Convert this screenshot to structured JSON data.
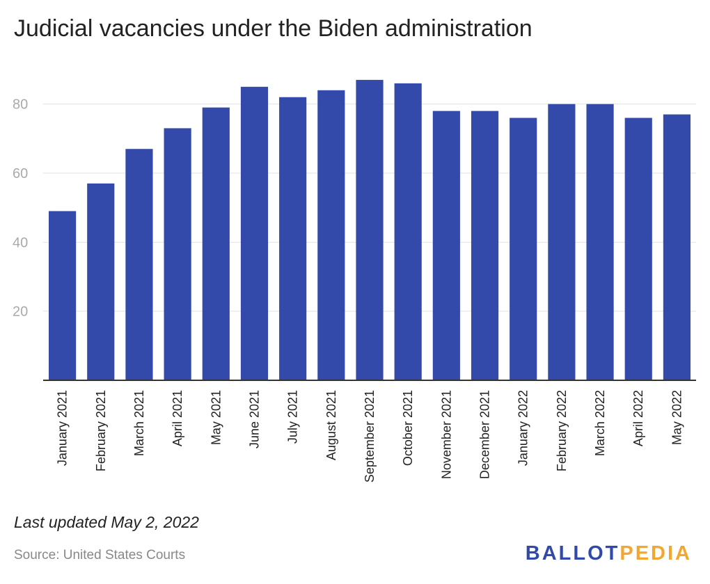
{
  "title": "Judicial vacancies under the Biden administration",
  "footer": {
    "updated": "Last updated May 2, 2022",
    "source": "Source: United States Courts"
  },
  "logo": {
    "part1": "BALLOT",
    "part2": "PEDIA",
    "color1": "#2f4aa8",
    "color2": "#f0a830"
  },
  "chart_data": {
    "type": "bar",
    "title": "Judicial vacancies under the Biden administration",
    "xlabel": "",
    "ylabel": "",
    "categories": [
      "January 2021",
      "February 2021",
      "March 2021",
      "April 2021",
      "May 2021",
      "June 2021",
      "July 2021",
      "August 2021",
      "September 2021",
      "October 2021",
      "November 2021",
      "December 2021",
      "January 2022",
      "February 2022",
      "March 2022",
      "April 2022",
      "May 2022"
    ],
    "values": [
      49,
      57,
      67,
      73,
      79,
      85,
      82,
      84,
      87,
      86,
      78,
      78,
      76,
      80,
      80,
      76,
      77
    ],
    "ylim": [
      0,
      90
    ],
    "yticks": [
      20,
      40,
      60,
      80
    ],
    "grid": true,
    "bar_color": "#334aab"
  }
}
